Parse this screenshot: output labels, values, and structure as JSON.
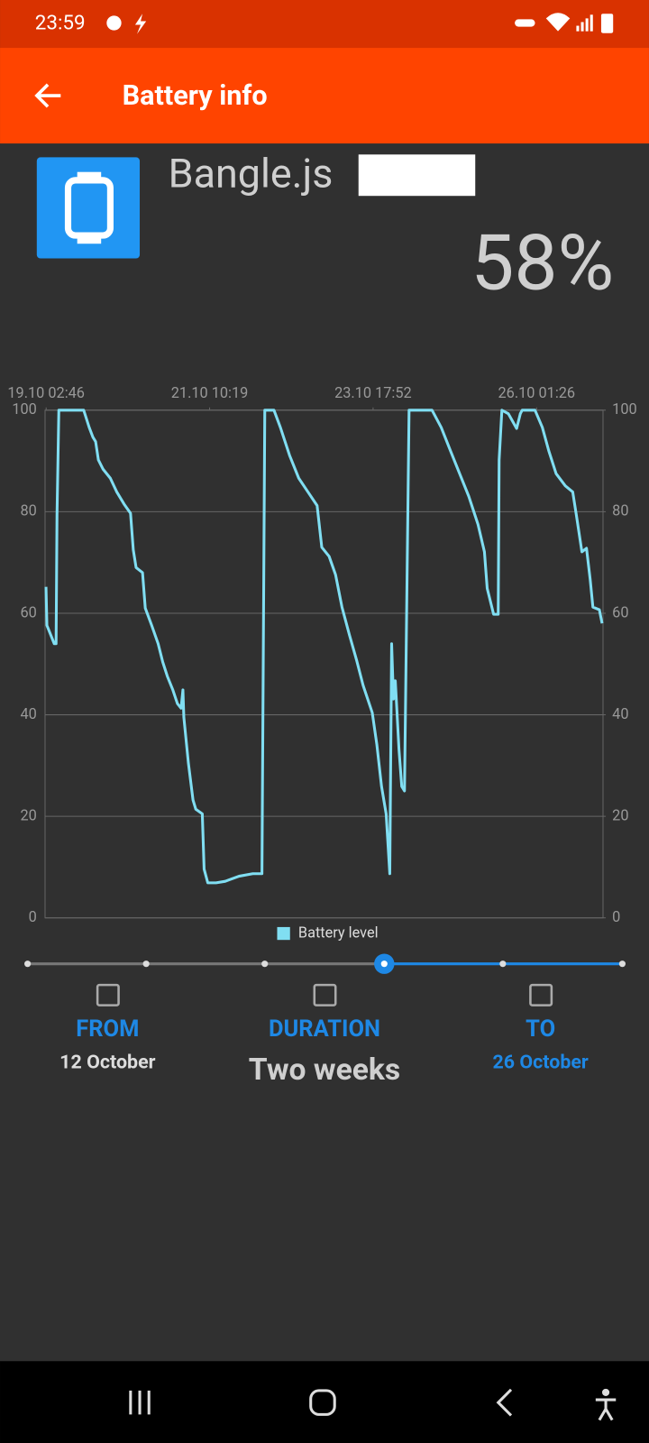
{
  "status_bar": {
    "time": "23:59"
  },
  "app_bar": {
    "title": "Battery info"
  },
  "device": {
    "name": "Bangle.js",
    "battery": "58%"
  },
  "chart_data": {
    "type": "line",
    "x": [
      19.113,
      19.126,
      19.178,
      19.23,
      19.256,
      19.269,
      19.295,
      19.647,
      19.725,
      19.777,
      19.816,
      19.855,
      19.92,
      20.024,
      20.115,
      20.219,
      20.31,
      20.349,
      20.389,
      20.48,
      20.519,
      20.61,
      20.701,
      20.766,
      20.831,
      20.909,
      20.974,
      21.026,
      21.052,
      21.065,
      21.13,
      21.195,
      21.234,
      21.326,
      21.352,
      21.404,
      21.521,
      21.651,
      21.846,
      22.041,
      22.171,
      22.211,
      22.341,
      22.432,
      22.562,
      22.692,
      22.822,
      22.952,
      23.018,
      23.122,
      23.213,
      23.304,
      23.408,
      23.512,
      23.603,
      23.733,
      23.798,
      23.864,
      23.929,
      23.981,
      24.007,
      24.033,
      24.059,
      24.111,
      24.15,
      24.189,
      24.254,
      24.579,
      24.709,
      24.84,
      24.97,
      25.1,
      25.23,
      25.321,
      25.36,
      25.451,
      25.516,
      25.529,
      25.568,
      25.66,
      25.777,
      25.829,
      25.855,
      26.037,
      26.141,
      26.232,
      26.336,
      26.466,
      26.571,
      26.623,
      26.701,
      26.766,
      26.818,
      26.857,
      26.948,
      26.987
    ],
    "series": [
      {
        "name": "Battery level",
        "color": "#80def2",
        "values": [
          65.2,
          57.6,
          55.8,
          54,
          54,
          79.3,
          100,
          100,
          96.6,
          94.7,
          93.8,
          90.2,
          88.4,
          86.6,
          83.9,
          81.5,
          79.7,
          72.5,
          69,
          68,
          61,
          57.6,
          54,
          50.4,
          47.6,
          44.9,
          42.2,
          41.3,
          44.9,
          39.5,
          30.4,
          23.2,
          21.4,
          20.5,
          9.6,
          6.9,
          6.9,
          7.2,
          8.2,
          8.7,
          8.7,
          100,
          100,
          96.6,
          91.1,
          86.6,
          83.9,
          81.2,
          73,
          71.2,
          67.6,
          61.2,
          55.8,
          50.7,
          45.8,
          40.4,
          34.1,
          25.9,
          20.5,
          8.7,
          54,
          43.1,
          46.7,
          33.2,
          25.9,
          25,
          100,
          100,
          96.6,
          92,
          87.5,
          83,
          77.5,
          72.1,
          64.9,
          59.8,
          59.8,
          90.2,
          100,
          99.3,
          96.4,
          99.3,
          100,
          100,
          96.6,
          92,
          87.5,
          85.1,
          83.9,
          79.3,
          72.1,
          72.8,
          66.7,
          61.2,
          60.7,
          58
        ]
      }
    ],
    "xlim": [
      19.1,
      27.0
    ],
    "xticks": [
      {
        "value": 19.1153,
        "label": "19.10 02:46"
      },
      {
        "value": 21.4299,
        "label": "21.10 10:19"
      },
      {
        "value": 23.7444,
        "label": "23.10 17:52"
      },
      {
        "value": 26.0597,
        "label": "26.10 01:26"
      }
    ],
    "ylim": [
      0,
      100
    ],
    "yticks": [
      0,
      20,
      40,
      60,
      80,
      100
    ],
    "y2lim": [
      0,
      100
    ],
    "y2ticks": [
      0,
      20,
      40,
      60,
      80,
      100
    ],
    "grid": true,
    "legend": "bottom"
  },
  "range": {
    "from": {
      "label": "FROM",
      "value": "12 October"
    },
    "duration": {
      "label": "DURATION",
      "value": "Two weeks"
    },
    "to": {
      "label": "TO",
      "value": "26 October"
    }
  }
}
